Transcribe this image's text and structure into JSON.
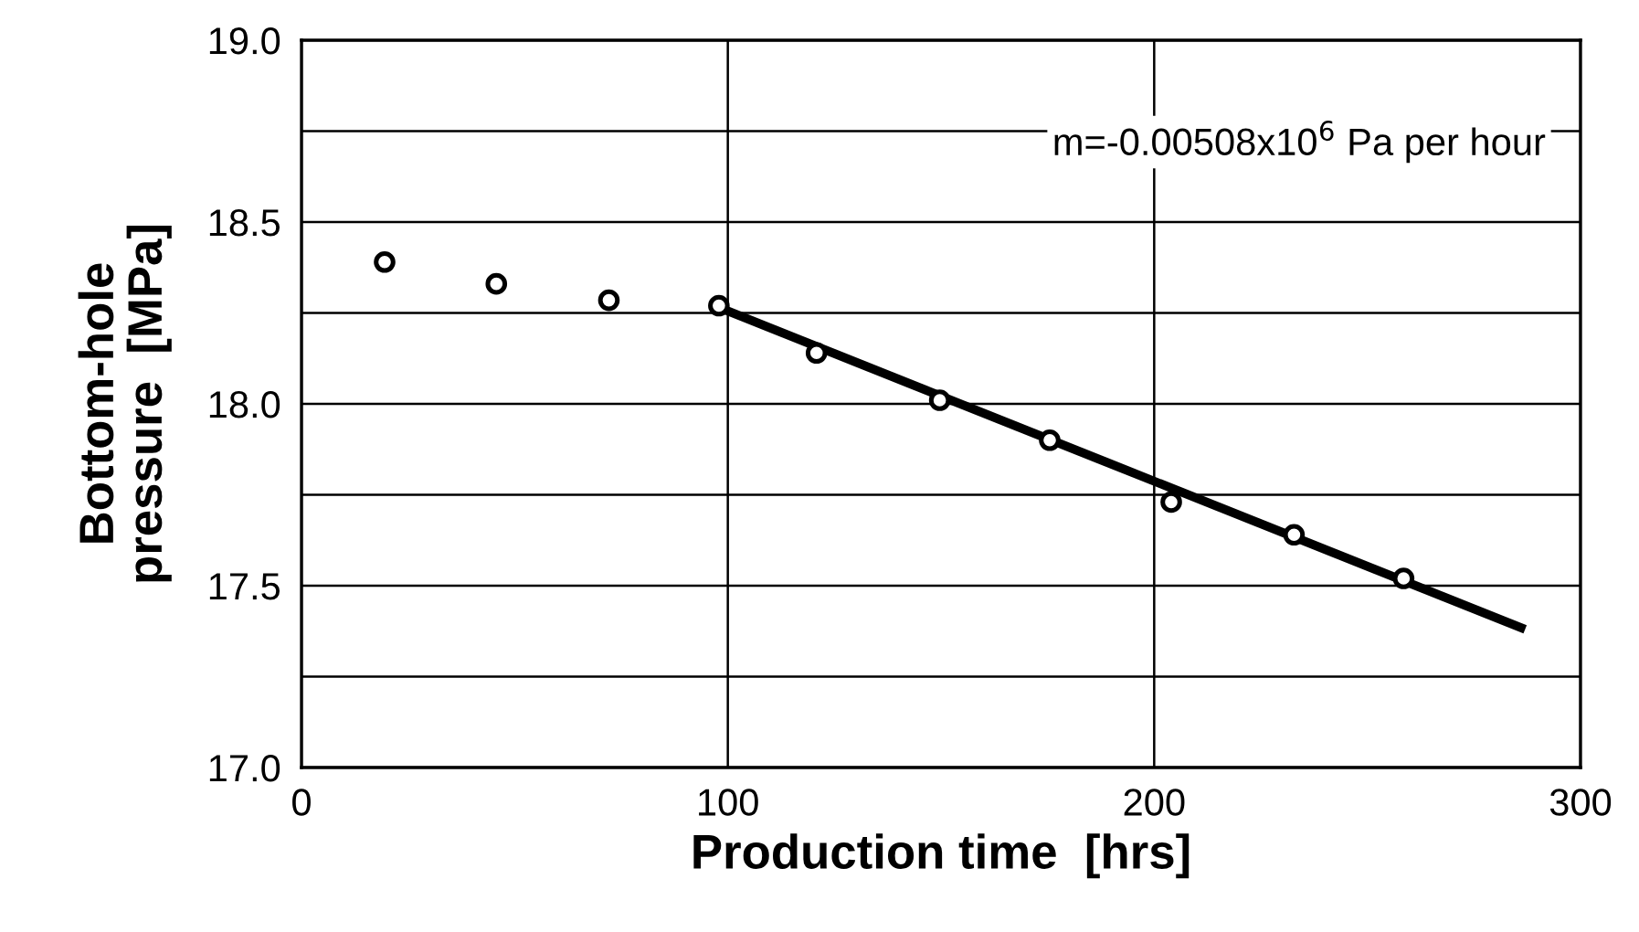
{
  "chart_data": {
    "type": "scatter",
    "xlabel": "Production time  [hrs]",
    "ylabel": "Bottom-hole\npressure  [MPa]",
    "series": [
      {
        "x": [
          19.5,
          45.7,
          72.1,
          97.9,
          120.8,
          149.7,
          175.5,
          204.0,
          232.8,
          258.5
        ],
        "values": [
          18.39,
          18.33,
          18.285,
          18.27,
          18.14,
          18.01,
          17.9,
          17.73,
          17.64,
          17.52
        ],
        "color": "#000000",
        "marker": "circle"
      },
      {
        "type": "line",
        "x": [
          99,
          287
        ],
        "values": [
          18.26,
          17.38
        ],
        "color": "#000000",
        "line_style": "solid"
      }
    ],
    "xlim": [
      0,
      300
    ],
    "xticks": [
      0,
      100,
      200,
      300
    ],
    "ylim": [
      17.0,
      19.0
    ],
    "yticks": [
      {
        "value": 17.0,
        "label": "17.0"
      },
      {
        "value": 17.25,
        "label": null
      },
      {
        "value": 17.5,
        "label": "17.5"
      },
      {
        "value": 17.75,
        "label": null
      },
      {
        "value": 18.0,
        "label": "18.0"
      },
      {
        "value": 18.25,
        "label": null
      },
      {
        "value": 18.5,
        "label": "18.5"
      },
      {
        "value": 18.75,
        "label": null
      },
      {
        "value": 19.0,
        "label": "19.0"
      }
    ],
    "grid": true,
    "annotations": [
      "m=-0.00508x10$^{6}$ Pa per hour"
    ]
  }
}
